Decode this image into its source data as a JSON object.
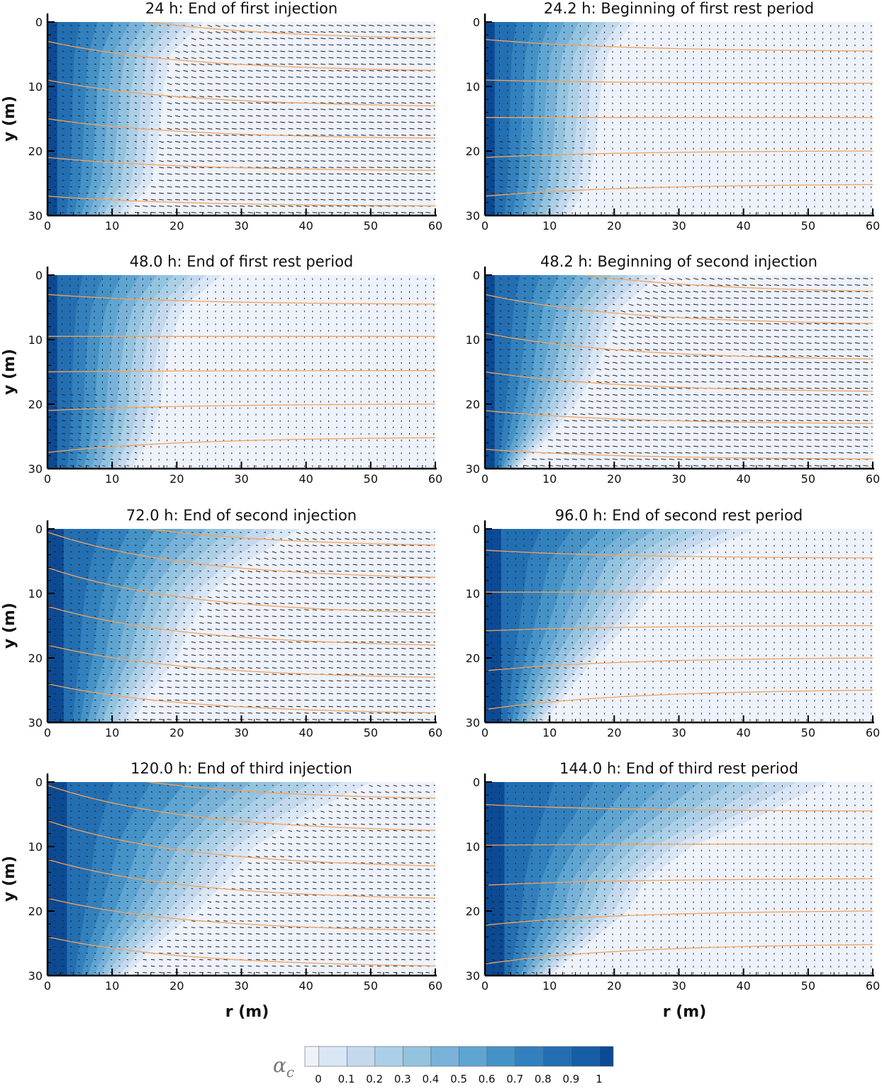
{
  "chart_data": [
    {
      "type": "heatmap",
      "title": "24 h: End of first injection",
      "xlabel": "",
      "ylabel": "y (m)",
      "xlim": [
        0,
        60
      ],
      "ylim": [
        30,
        0
      ],
      "x_ticks": [
        "0",
        "10",
        "20",
        "30",
        "40",
        "50",
        "60"
      ],
      "y_ticks": [
        "0",
        "10",
        "20",
        "30"
      ],
      "front_y": [
        0,
        5,
        10,
        15,
        20,
        25,
        30
      ],
      "front_r": [
        24,
        19,
        18,
        17.5,
        17,
        16,
        12
      ],
      "core_r": 1.5,
      "streamlines": [
        [
          -3,
          2.5
        ],
        [
          3,
          7.5
        ],
        [
          9,
          13
        ],
        [
          15,
          18
        ],
        [
          21,
          23
        ],
        [
          27,
          28.5
        ]
      ],
      "arrow_scale": 1.0
    },
    {
      "type": "heatmap",
      "title": "24.2 h: Beginning of first rest period",
      "xlabel": "",
      "ylabel": "",
      "xlim": [
        0,
        60
      ],
      "ylim": [
        30,
        0
      ],
      "x_ticks": [
        "0",
        "10",
        "20",
        "30",
        "40",
        "50",
        "60"
      ],
      "y_ticks": [
        "0",
        "10",
        "20",
        "30"
      ],
      "front_y": [
        0,
        5,
        10,
        15,
        20,
        25,
        30
      ],
      "front_r": [
        23,
        19,
        18,
        17.5,
        17,
        16,
        13
      ],
      "core_r": 1.5,
      "streamlines": [
        [
          2.7,
          4.5
        ],
        [
          9,
          9.5
        ],
        [
          14.8,
          14.8
        ],
        [
          21,
          20
        ],
        [
          27,
          25.2
        ]
      ],
      "arrow_scale": 0.15
    },
    {
      "type": "heatmap",
      "title": "48.0 h: End of first rest period",
      "xlabel": "",
      "ylabel": "y (m)",
      "xlim": [
        0,
        60
      ],
      "ylim": [
        30,
        0
      ],
      "x_ticks": [
        "0",
        "10",
        "20",
        "30",
        "40",
        "50",
        "60"
      ],
      "y_ticks": [
        "0",
        "10",
        "20",
        "30"
      ],
      "front_y": [
        0,
        5,
        10,
        15,
        20,
        25,
        30
      ],
      "front_r": [
        27,
        21,
        19,
        18,
        17.5,
        16,
        13
      ],
      "core_r": 1.5,
      "streamlines": [
        [
          3,
          4.5
        ],
        [
          9.5,
          9.5
        ],
        [
          15,
          14.8
        ],
        [
          21,
          20
        ],
        [
          27.5,
          25.2
        ]
      ],
      "arrow_scale": 0.15
    },
    {
      "type": "heatmap",
      "title": "48.2 h: Beginning of second injection",
      "xlabel": "",
      "ylabel": "",
      "xlim": [
        0,
        60
      ],
      "ylim": [
        30,
        0
      ],
      "x_ticks": [
        "0",
        "10",
        "20",
        "30",
        "40",
        "50",
        "60"
      ],
      "y_ticks": [
        "0",
        "10",
        "20",
        "30"
      ],
      "front_y": [
        0,
        5,
        10,
        15,
        20,
        25,
        30
      ],
      "front_r": [
        27,
        21,
        19,
        17,
        14,
        10,
        5
      ],
      "core_r": 1.5,
      "streamlines": [
        [
          -3,
          2.5
        ],
        [
          3,
          7.5
        ],
        [
          9,
          13
        ],
        [
          15,
          18
        ],
        [
          21,
          23
        ],
        [
          27,
          28.5
        ]
      ],
      "arrow_scale": 1.0
    },
    {
      "type": "heatmap",
      "title": "72.0 h: End of second injection",
      "xlabel": "",
      "ylabel": "y (m)",
      "xlim": [
        0,
        60
      ],
      "ylim": [
        30,
        0
      ],
      "x_ticks": [
        "0",
        "10",
        "20",
        "30",
        "40",
        "50",
        "60"
      ],
      "y_ticks": [
        "0",
        "10",
        "20",
        "30"
      ],
      "front_y": [
        0,
        5,
        10,
        15,
        20,
        25,
        30
      ],
      "front_r": [
        39,
        31,
        25,
        22,
        20,
        16,
        13
      ],
      "core_r": 2.5,
      "streamlines": [
        [
          -3,
          2.5
        ],
        [
          0.5,
          7.5
        ],
        [
          6,
          13
        ],
        [
          12,
          18
        ],
        [
          18,
          23
        ],
        [
          24,
          28.5
        ]
      ],
      "arrow_scale": 0.9
    },
    {
      "type": "heatmap",
      "title": "96.0 h: End of second rest period",
      "xlabel": "",
      "ylabel": "",
      "xlim": [
        0,
        60
      ],
      "ylim": [
        30,
        0
      ],
      "x_ticks": [
        "0",
        "10",
        "20",
        "30",
        "40",
        "50",
        "60"
      ],
      "y_ticks": [
        "0",
        "10",
        "20",
        "30"
      ],
      "front_y": [
        0,
        5,
        10,
        15,
        20,
        25,
        30
      ],
      "front_r": [
        42,
        30,
        26,
        22,
        17,
        13,
        9
      ],
      "core_r": 2.5,
      "streamlines": [
        [
          3.3,
          4.5
        ],
        [
          9.8,
          9.8
        ],
        [
          15.8,
          15
        ],
        [
          22,
          20
        ],
        [
          28,
          25
        ]
      ],
      "arrow_scale": 0.15
    },
    {
      "type": "heatmap",
      "title": "120.0 h: End of third injection",
      "xlabel": "r (m)",
      "ylabel": "y (m)",
      "xlim": [
        0,
        60
      ],
      "ylim": [
        30,
        0
      ],
      "x_ticks": [
        "0",
        "10",
        "20",
        "30",
        "40",
        "50",
        "60"
      ],
      "y_ticks": [
        "0",
        "10",
        "20",
        "30"
      ],
      "front_y": [
        0,
        5,
        10,
        15,
        20,
        25,
        30
      ],
      "front_r": [
        50,
        40,
        32,
        28,
        23,
        17,
        12
      ],
      "core_r": 3,
      "streamlines": [
        [
          -3,
          2.5
        ],
        [
          0.5,
          7.5
        ],
        [
          6,
          13
        ],
        [
          12,
          18
        ],
        [
          18,
          23
        ],
        [
          24,
          28.5
        ]
      ],
      "arrow_scale": 0.8
    },
    {
      "type": "heatmap",
      "title": "144.0 h: End of third rest period",
      "xlabel": "r (m)",
      "ylabel": "",
      "xlim": [
        0,
        60
      ],
      "ylim": [
        30,
        0
      ],
      "x_ticks": [
        "0",
        "10",
        "20",
        "30",
        "40",
        "50",
        "60"
      ],
      "y_ticks": [
        "0",
        "10",
        "20",
        "30"
      ],
      "front_y": [
        0,
        5,
        10,
        15,
        20,
        25,
        30
      ],
      "front_r": [
        53,
        43,
        32,
        25,
        22,
        16,
        10
      ],
      "core_r": 3,
      "streamlines": [
        [
          3.5,
          4.5
        ],
        [
          9.8,
          9.6
        ],
        [
          16,
          15
        ],
        [
          22.2,
          20
        ],
        [
          28.2,
          25.2
        ]
      ],
      "arrow_scale": 0.15
    }
  ],
  "colorbar": {
    "label": "αc",
    "tick_labels": [
      "0",
      "0.1",
      "0.2",
      "0.3",
      "0.4",
      "0.5",
      "0.6",
      "0.7",
      "0.8",
      "0.9",
      "1"
    ],
    "colors": [
      "#eef2fb",
      "#d9e6f5",
      "#c4d9ee",
      "#abcfe6",
      "#93c3df",
      "#79b2d9",
      "#5ea5d2",
      "#4592c7",
      "#3280bd",
      "#236fb2",
      "#175ea6",
      "#0c4a94"
    ]
  },
  "streamline_color": "#f5a25b"
}
